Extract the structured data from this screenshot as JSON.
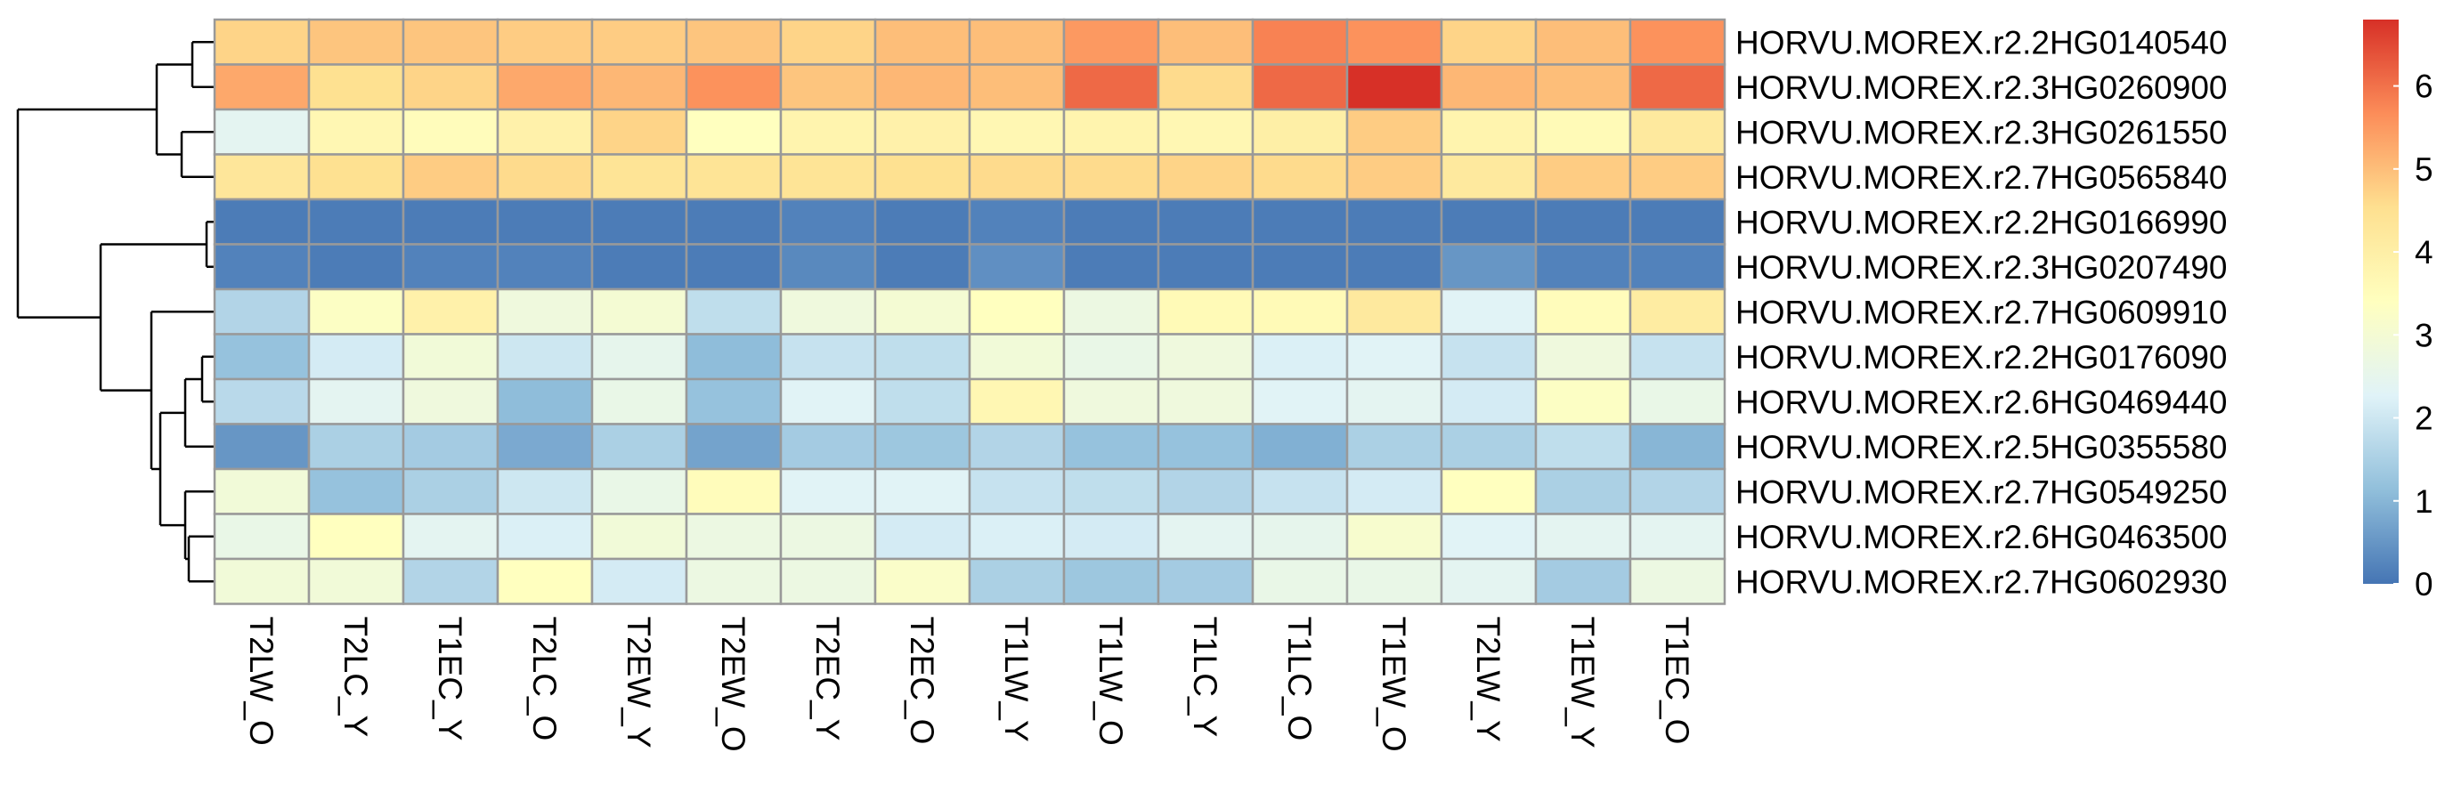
{
  "chart_data": {
    "type": "heatmap",
    "title": "",
    "columns": [
      "T2LW_O",
      "T2LC_Y",
      "T1EC_Y",
      "T2LC_O",
      "T2EW_Y",
      "T2EW_O",
      "T2EC_Y",
      "T2EC_O",
      "T1LW_Y",
      "T1LW_O",
      "T1LC_Y",
      "T1LC_O",
      "T1EW_O",
      "T2LW_Y",
      "T1EW_Y",
      "T1EC_O"
    ],
    "rows": [
      "HORVU.MOREX.r2.2HG0140540",
      "HORVU.MOREX.r2.3HG0260900",
      "HORVU.MOREX.r2.3HG0261550",
      "HORVU.MOREX.r2.7HG0565840",
      "HORVU.MOREX.r2.2HG0166990",
      "HORVU.MOREX.r2.3HG0207490",
      "HORVU.MOREX.r2.7HG0609910",
      "HORVU.MOREX.r2.2HG0176090",
      "HORVU.MOREX.r2.6HG0469440",
      "HORVU.MOREX.r2.5HG0355580",
      "HORVU.MOREX.r2.7HG0549250",
      "HORVU.MOREX.r2.6HG0463500",
      "HORVU.MOREX.r2.7HG0602930"
    ],
    "values": [
      [
        4.7,
        4.9,
        4.9,
        4.8,
        4.8,
        4.9,
        4.7,
        5.0,
        5.0,
        5.5,
        5.0,
        5.8,
        5.6,
        4.7,
        5.0,
        5.6
      ],
      [
        5.3,
        4.5,
        4.7,
        5.3,
        5.1,
        5.6,
        4.9,
        5.1,
        5.0,
        6.1,
        4.6,
        6.1,
        6.8,
        5.1,
        5.0,
        6.1
      ],
      [
        2.4,
        3.7,
        3.5,
        3.9,
        4.7,
        3.4,
        3.8,
        3.9,
        3.7,
        3.8,
        3.7,
        4.0,
        4.8,
        3.8,
        3.6,
        4.2
      ],
      [
        4.3,
        4.5,
        4.8,
        4.6,
        4.4,
        4.4,
        4.4,
        4.5,
        4.6,
        4.6,
        4.7,
        4.6,
        4.8,
        4.2,
        4.8,
        4.8
      ],
      [
        0.1,
        0.1,
        0.1,
        0.1,
        0.1,
        0.1,
        0.2,
        0.1,
        0.2,
        0.1,
        0.1,
        0.1,
        0.1,
        0.1,
        0.1,
        0.1
      ],
      [
        0.2,
        0.1,
        0.2,
        0.2,
        0.1,
        0.1,
        0.3,
        0.1,
        0.4,
        0.1,
        0.1,
        0.1,
        0.1,
        0.5,
        0.2,
        0.2
      ],
      [
        1.6,
        3.3,
        3.9,
        2.8,
        3.0,
        1.8,
        2.8,
        3.0,
        3.4,
        2.7,
        3.6,
        3.6,
        4.2,
        2.3,
        3.5,
        4.1
      ],
      [
        1.2,
        2.1,
        2.9,
        2.0,
        2.5,
        1.1,
        1.9,
        1.8,
        2.9,
        2.6,
        2.8,
        2.2,
        2.3,
        1.9,
        2.8,
        1.9
      ],
      [
        1.7,
        2.4,
        2.8,
        1.1,
        2.6,
        1.2,
        2.3,
        1.8,
        3.7,
        2.8,
        2.8,
        2.3,
        2.4,
        2.1,
        3.3,
        2.6
      ],
      [
        0.5,
        1.5,
        1.4,
        0.8,
        1.5,
        0.7,
        1.4,
        1.3,
        1.6,
        1.2,
        1.2,
        0.9,
        1.5,
        1.5,
        1.8,
        1.0
      ],
      [
        2.9,
        1.2,
        1.5,
        2.0,
        2.6,
        3.5,
        2.3,
        2.3,
        1.9,
        1.8,
        1.6,
        1.9,
        2.1,
        3.4,
        1.5,
        1.6
      ],
      [
        2.6,
        3.4,
        2.4,
        2.2,
        2.9,
        2.7,
        2.7,
        2.1,
        2.2,
        2.1,
        2.4,
        2.5,
        3.1,
        2.3,
        2.4,
        2.4
      ],
      [
        2.9,
        2.9,
        1.6,
        3.4,
        2.1,
        2.7,
        2.7,
        3.2,
        1.5,
        1.3,
        1.4,
        2.6,
        2.6,
        2.4,
        1.4,
        2.7
      ]
    ],
    "legend_ticks": [
      0,
      1,
      2,
      3,
      4,
      5,
      6
    ],
    "color_range": [
      0,
      6.8
    ],
    "colors": [
      "#4575b4",
      "#91bfdb",
      "#e0f3f8",
      "#ffffbf",
      "#fee090",
      "#fc8d59",
      "#d73027"
    ],
    "grid_color": "#999999",
    "dendrogram": "rows"
  }
}
